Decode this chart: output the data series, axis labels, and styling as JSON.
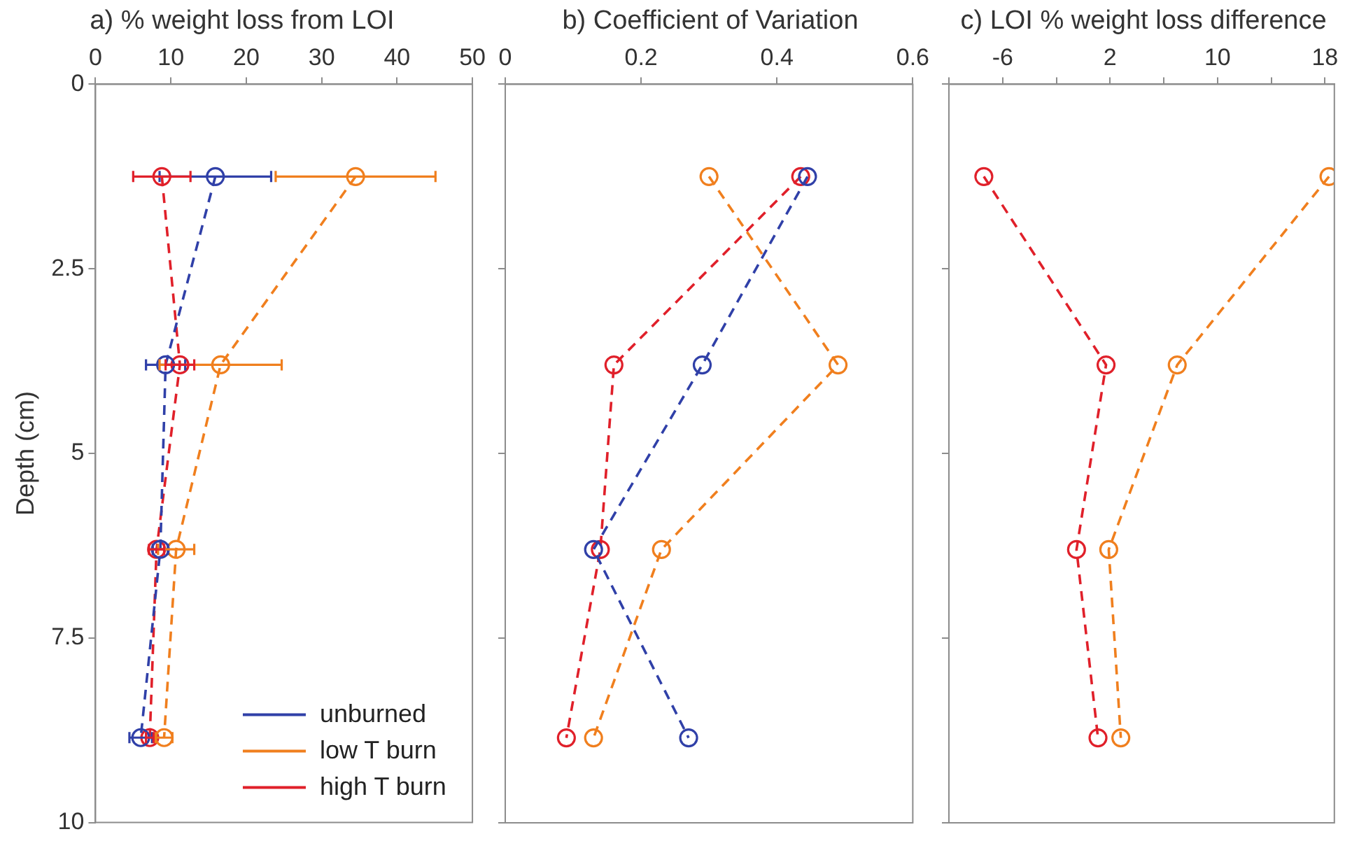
{
  "chart_data": [
    {
      "type": "line",
      "title": "a) % weight loss from LOI",
      "ylabel": "Depth (cm)",
      "xlim": [
        0,
        50
      ],
      "xticks": [
        0,
        10,
        20,
        30,
        40,
        50
      ],
      "ylim": [
        10,
        0
      ],
      "yticks": [
        0,
        2.5,
        5,
        7.5,
        10
      ],
      "grid": false,
      "legend": "bottom right",
      "marker": "circle",
      "line_style": "dashed",
      "series": [
        {
          "name": "unburned",
          "color": "#3040a8",
          "x": [
            15.9,
            9.3,
            8.6,
            6.0
          ],
          "values": [
            1.25,
            3.8,
            6.3,
            8.85
          ],
          "xerrors": [
            7.4,
            2.6,
            1.0,
            1.5
          ]
        },
        {
          "name": "low T burn",
          "color": "#f07f1e",
          "x": [
            34.5,
            16.6,
            10.7,
            9.1
          ],
          "values": [
            1.25,
            3.8,
            6.3,
            8.85
          ],
          "xerrors": [
            10.6,
            8.1,
            2.4,
            1.1
          ]
        },
        {
          "name": "high T burn",
          "color": "#e0202a",
          "x": [
            8.8,
            11.2,
            8.1,
            7.2
          ],
          "values": [
            1.25,
            3.8,
            6.3,
            8.85
          ],
          "xerrors": [
            3.8,
            1.9,
            1.0,
            0.5
          ]
        }
      ]
    },
    {
      "type": "line",
      "title": "b) Coefficient of Variation",
      "xlim": [
        0,
        0.6
      ],
      "xticks": [
        0,
        0.2,
        0.4,
        0.6
      ],
      "ylim": [
        10,
        0
      ],
      "yticks": [
        {
          "value": 0,
          "label": null
        },
        {
          "value": 2.5,
          "label": null
        },
        {
          "value": 5,
          "label": null
        },
        {
          "value": 7.5,
          "label": null
        },
        {
          "value": 10,
          "label": null
        }
      ],
      "tick_labels": "x",
      "grid": false,
      "marker": "circle",
      "line_style": "dashed",
      "series": [
        {
          "color": "#3040a8",
          "x": [
            0.445,
            0.29,
            0.13,
            0.27
          ],
          "values": [
            1.25,
            3.8,
            6.3,
            8.85
          ]
        },
        {
          "color": "#f07f1e",
          "x": [
            0.3,
            0.49,
            0.23,
            0.13
          ],
          "values": [
            1.25,
            3.8,
            6.3,
            8.85
          ]
        },
        {
          "color": "#e0202a",
          "x": [
            0.435,
            0.16,
            0.14,
            0.09
          ],
          "values": [
            1.25,
            3.8,
            6.3,
            8.85
          ]
        }
      ]
    },
    {
      "type": "line",
      "title": "c) LOI % weight loss difference",
      "xlim": [
        -10,
        18.7
      ],
      "xticks": [
        {
          "value": -10,
          "label": null
        },
        -6,
        {
          "value": -2,
          "label": null
        },
        2,
        {
          "value": 6,
          "label": null
        },
        10,
        {
          "value": 14,
          "label": null
        },
        18
      ],
      "ylim": [
        10,
        0
      ],
      "yticks": [
        {
          "value": 0,
          "label": null
        },
        {
          "value": 2.5,
          "label": null
        },
        {
          "value": 5,
          "label": null
        },
        {
          "value": 7.5,
          "label": null
        },
        {
          "value": 10,
          "label": null
        }
      ],
      "tick_labels": "x",
      "grid": false,
      "marker": "circle",
      "line_style": "dashed",
      "series": [
        {
          "color": "#e0202a",
          "x": [
            -7.4,
            1.7,
            -0.5,
            1.1
          ],
          "values": [
            1.25,
            3.8,
            6.3,
            8.85
          ]
        },
        {
          "color": "#f07f1e",
          "x": [
            18.3,
            7.0,
            1.9,
            2.8
          ],
          "values": [
            1.25,
            3.8,
            6.3,
            8.85
          ]
        }
      ]
    }
  ]
}
